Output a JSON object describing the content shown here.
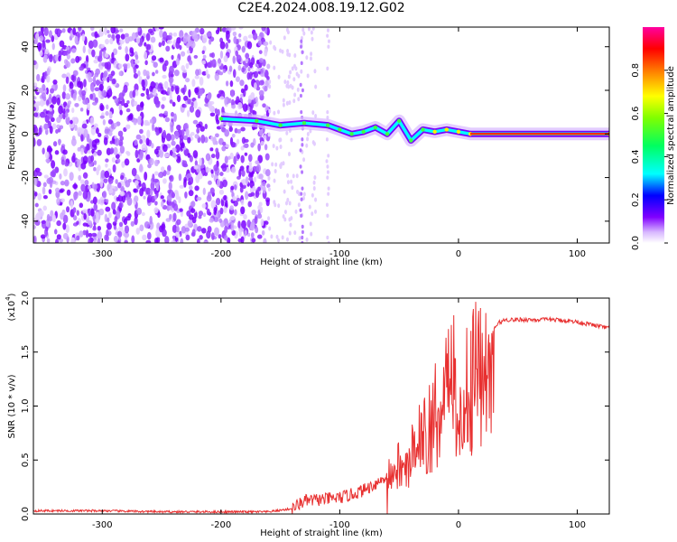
{
  "title": "C2E4.2024.008.19.12.G02",
  "chart_data": [
    {
      "type": "heatmap",
      "xlabel": "Height of straight line (km)",
      "ylabel": "Frequency (Hz)",
      "xlim": [
        -358,
        127
      ],
      "ylim": [
        -50,
        49
      ],
      "xticks": [
        -300,
        -200,
        -100,
        0,
        100
      ],
      "yticks": [
        -40,
        -20,
        0,
        20,
        40
      ],
      "colorbar": {
        "label": "Normalized spectral amplitude",
        "range": [
          0.0,
          1.0
        ],
        "ticks": [
          "0.0",
          "0.2",
          "0.4",
          "0.6",
          "0.8"
        ]
      },
      "doppler_trace": [
        {
          "x": -200,
          "y": 7
        },
        {
          "x": -170,
          "y": 6
        },
        {
          "x": -150,
          "y": 4
        },
        {
          "x": -130,
          "y": 5
        },
        {
          "x": -110,
          "y": 4
        },
        {
          "x": -100,
          "y": 2
        },
        {
          "x": -90,
          "y": 0
        },
        {
          "x": -80,
          "y": 1
        },
        {
          "x": -70,
          "y": 3
        },
        {
          "x": -60,
          "y": 0
        },
        {
          "x": -50,
          "y": 6
        },
        {
          "x": -40,
          "y": -3
        },
        {
          "x": -30,
          "y": 2
        },
        {
          "x": -20,
          "y": 1
        },
        {
          "x": -10,
          "y": 2
        },
        {
          "x": 0,
          "y": 1
        },
        {
          "x": 10,
          "y": 0
        },
        {
          "x": 127,
          "y": 0
        }
      ]
    },
    {
      "type": "line",
      "xlabel": "Height of straight line (km)",
      "ylabel": "SNR (10 * v/v)",
      "multiplier": "(x10",
      "multiplier_exp": "4",
      "multiplier_close": ")",
      "xlim": [
        -358,
        127
      ],
      "ylim": [
        0,
        2.0
      ],
      "xticks": [
        -300,
        -200,
        -100,
        0,
        100
      ],
      "yticks": [
        "0.0",
        "0.5",
        "1.0",
        "1.5",
        "2.0"
      ],
      "color": "#e83030",
      "series": [
        {
          "x": [
            -358,
            -300,
            -250,
            -200,
            -160,
            -140,
            -130,
            -120,
            -110,
            -100,
            -90,
            -80,
            -70,
            -60,
            -55,
            -50,
            -45,
            -40,
            -35,
            -30,
            -25,
            -20,
            -15,
            -12,
            -10,
            -5,
            0,
            5,
            10,
            15,
            20,
            25,
            30,
            35,
            40,
            60,
            80,
            100,
            127
          ],
          "y": [
            0.03,
            0.03,
            0.02,
            0.02,
            0.02,
            0.05,
            0.12,
            0.13,
            0.14,
            0.15,
            0.18,
            0.22,
            0.28,
            0.35,
            0.42,
            0.5,
            0.55,
            0.62,
            0.7,
            0.78,
            0.85,
            0.95,
            1.1,
            1.25,
            1.3,
            1.35,
            1.2,
            1.25,
            1.3,
            1.4,
            1.5,
            1.6,
            1.72,
            1.78,
            1.8,
            1.8,
            1.8,
            1.78,
            1.72
          ]
        }
      ]
    }
  ]
}
